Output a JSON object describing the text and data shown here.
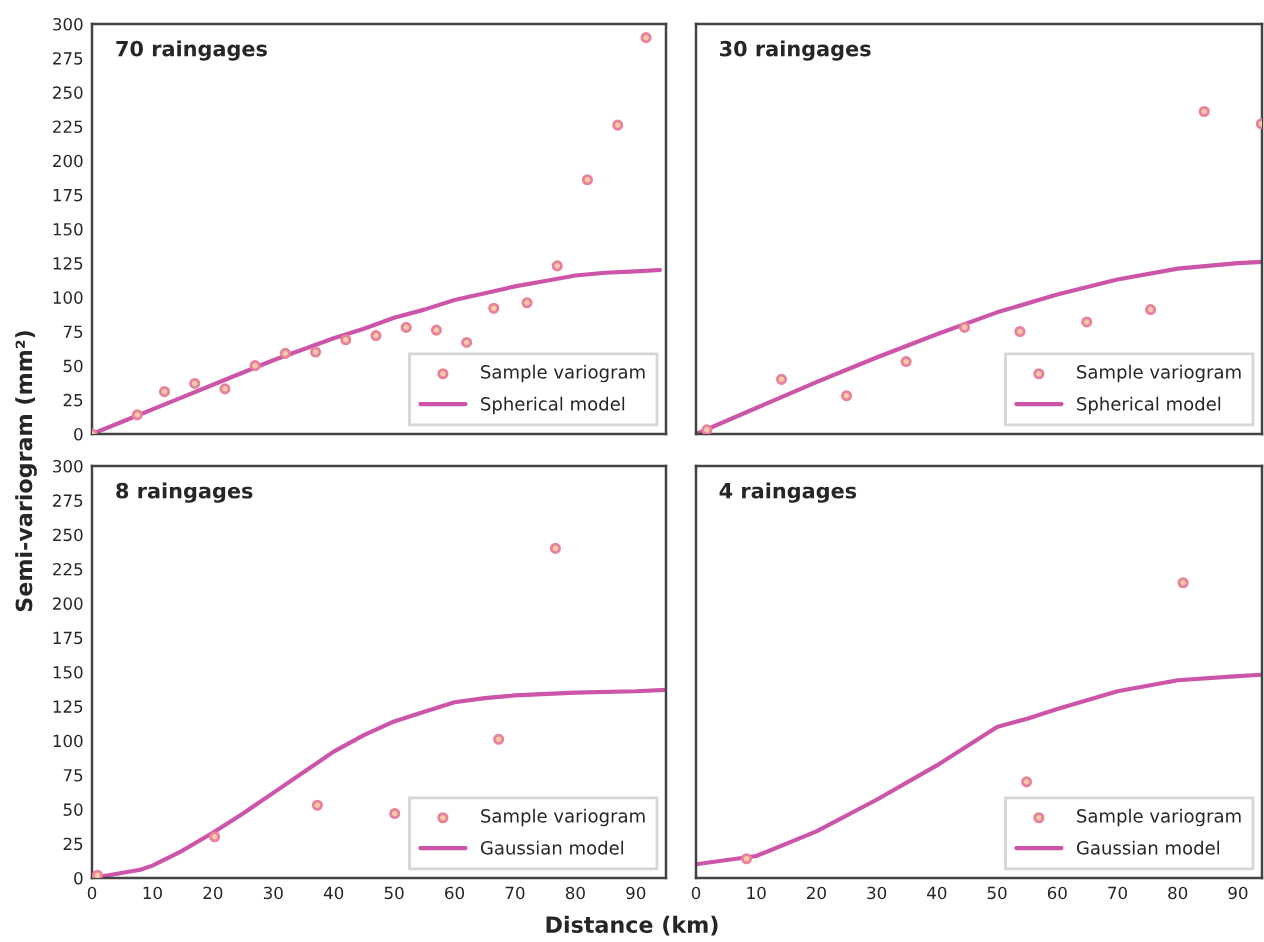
{
  "chart_data": [
    {
      "type": "scatter",
      "title": "70 raingages",
      "ylabel": "Semi-variogram (mm²)",
      "xlim": [
        0,
        95
      ],
      "ylim": [
        0,
        300
      ],
      "xticks": [
        0,
        10,
        20,
        30,
        40,
        50,
        60,
        70,
        80,
        90
      ],
      "yticks": [
        0,
        25,
        50,
        75,
        100,
        125,
        150,
        175,
        200,
        225,
        250,
        275,
        300
      ],
      "tick_labels": "y",
      "legend": "bottom right",
      "grid": false,
      "series": [
        {
          "name": "Sample variogram",
          "marker": "circle",
          "color": "#e8829a",
          "x": [
            0,
            7.5,
            12,
            17,
            22,
            27,
            32,
            37,
            42,
            47,
            52,
            57,
            62,
            66.5,
            72,
            77,
            82,
            87,
            91.7
          ],
          "values": [
            0,
            14,
            31,
            37,
            33,
            50,
            59,
            60,
            69,
            72,
            78,
            76,
            67,
            92,
            96,
            123,
            186,
            226,
            290
          ]
        },
        {
          "name": "Spherical model",
          "type": "line",
          "line_style": "solid",
          "color": "#cc55aa",
          "x": [
            0,
            5,
            10,
            15,
            20,
            25,
            30,
            35,
            40,
            45,
            50,
            55,
            60,
            65,
            70,
            75,
            80,
            85,
            90,
            94
          ],
          "values": [
            0,
            9,
            18,
            27,
            36,
            45,
            54,
            62,
            70,
            77,
            85,
            91,
            98,
            103,
            108,
            112,
            116,
            118,
            119,
            120
          ]
        }
      ]
    },
    {
      "type": "scatter",
      "title": "30 raingages",
      "xlim": [
        0,
        94
      ],
      "ylim": [
        0,
        300
      ],
      "xticks": [
        0,
        10,
        20,
        30,
        40,
        50,
        60,
        70,
        80,
        90
      ],
      "yticks": [
        0,
        25,
        50,
        75,
        100,
        125,
        150,
        175,
        200,
        225,
        250,
        275,
        300
      ],
      "tick_labels": false,
      "legend": "bottom right",
      "grid": false,
      "series": [
        {
          "name": "Sample variogram",
          "marker": "circle",
          "color": "#e8829a",
          "x": [
            1.8,
            14.2,
            25,
            34.9,
            44.6,
            53.8,
            64.9,
            75.5,
            84.4,
            93.9
          ],
          "values": [
            3,
            40,
            28,
            53,
            78,
            75,
            82,
            91,
            236,
            227
          ]
        },
        {
          "name": "Spherical model",
          "type": "line",
          "line_style": "solid",
          "color": "#cc55aa",
          "x": [
            0,
            10,
            20,
            25,
            30,
            40,
            50,
            60,
            70,
            80,
            90,
            94
          ],
          "values": [
            0,
            19,
            38,
            47,
            56,
            73,
            89,
            102,
            113,
            121,
            125,
            126
          ]
        }
      ]
    },
    {
      "type": "scatter",
      "title": "8 raingages",
      "xlabel": "Distance (km)",
      "xlim": [
        0,
        95
      ],
      "ylim": [
        0,
        300
      ],
      "xticks": [
        0,
        10,
        20,
        30,
        40,
        50,
        60,
        70,
        80,
        90
      ],
      "yticks": [
        0,
        25,
        50,
        75,
        100,
        125,
        150,
        175,
        200,
        225,
        250,
        275,
        300
      ],
      "legend": "bottom right",
      "grid": false,
      "series": [
        {
          "name": "Sample variogram",
          "marker": "circle",
          "color": "#e8829a",
          "x": [
            0.9,
            20.3,
            37.3,
            50.1,
            67.3,
            76.7
          ],
          "values": [
            2,
            30,
            53,
            47,
            101,
            240
          ]
        },
        {
          "name": "Gaussian model",
          "type": "line",
          "line_style": "solid",
          "color": "#cc55aa",
          "x": [
            0,
            8,
            10,
            15,
            20,
            25,
            30,
            35,
            40,
            45,
            50,
            55,
            60,
            65,
            70,
            80,
            90,
            95
          ],
          "values": [
            0,
            6,
            9,
            20,
            33,
            47,
            62,
            77,
            92,
            104,
            114,
            121,
            128,
            131,
            133,
            135,
            136,
            137
          ]
        }
      ]
    },
    {
      "type": "scatter",
      "title": "4 raingages",
      "xlim": [
        0,
        94
      ],
      "ylim": [
        0,
        300
      ],
      "xticks": [
        0,
        10,
        20,
        30,
        40,
        50,
        60,
        70,
        80,
        90
      ],
      "yticks": [
        0,
        25,
        50,
        75,
        100,
        125,
        150,
        175,
        200,
        225,
        250,
        275,
        300
      ],
      "tick_labels": "x",
      "legend": "bottom right",
      "grid": false,
      "series": [
        {
          "name": "Sample variogram",
          "marker": "circle",
          "color": "#e8829a",
          "x": [
            8.4,
            54.9,
            80.9
          ],
          "values": [
            14,
            70,
            215
          ]
        },
        {
          "name": "Gaussian model",
          "type": "line",
          "line_style": "solid",
          "color": "#cc55aa",
          "x": [
            0,
            10,
            20,
            30,
            40,
            50,
            55,
            60,
            70,
            80,
            90,
            94
          ],
          "values": [
            10,
            16,
            34,
            57,
            82,
            110,
            116,
            123,
            136,
            144,
            147,
            148
          ]
        }
      ]
    }
  ]
}
